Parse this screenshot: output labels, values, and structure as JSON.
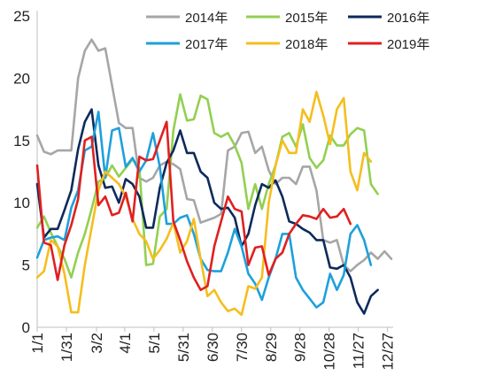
{
  "chart_data": {
    "type": "line",
    "title": "",
    "xlabel": "",
    "ylabel": "",
    "ylim": [
      0,
      25
    ],
    "yticks": [
      0,
      5,
      10,
      15,
      20,
      25
    ],
    "x_ticks": [
      "1/1",
      "1/31",
      "3/2",
      "4/1",
      "5/1",
      "5/31",
      "6/30",
      "7/30",
      "8/29",
      "9/28",
      "10/28",
      "11/27",
      "12/27"
    ],
    "x_tick_weeks": [
      0,
      4.29,
      8.71,
      12.86,
      17.14,
      21.43,
      25.71,
      30,
      34.29,
      38.57,
      42.86,
      47.14,
      51.43
    ],
    "x_unit": "week",
    "grid": false,
    "legend_position": "top-right",
    "series": [
      {
        "name": "2014年",
        "color": "#a6a6a6",
        "values": [
          15.4,
          14.1,
          13.9,
          14.2,
          14.2,
          14.2,
          20.0,
          22.2,
          23.1,
          22.2,
          22.4,
          19.4,
          16.4,
          16.0,
          16.0,
          12.0,
          11.7,
          12.0,
          13.0,
          13.3,
          13.1,
          12.7,
          10.3,
          10.2,
          8.4,
          8.6,
          8.8,
          9.1,
          14.2,
          14.5,
          15.6,
          15.7,
          14.0,
          14.5,
          12.6,
          11.5,
          12.0,
          12.0,
          11.5,
          12.9,
          12.9,
          11.0,
          7.0,
          6.8,
          7.0,
          5.0,
          4.5,
          5.0,
          5.4,
          6.0,
          5.5,
          6.1,
          5.5
        ]
      },
      {
        "name": "2015年",
        "color": "#92d050",
        "values": [
          8.0,
          8.9,
          7.6,
          6.5,
          5.5,
          4.0,
          6.0,
          7.5,
          9.5,
          11.7,
          12.0,
          13.0,
          12.1,
          12.8,
          13.5,
          12.8,
          5.0,
          5.1,
          8.9,
          9.5,
          15.8,
          18.7,
          16.6,
          16.7,
          18.6,
          18.3,
          15.6,
          15.3,
          15.6,
          14.6,
          13.2,
          9.5,
          11.5,
          9.5,
          11.5,
          13.0,
          15.3,
          15.6,
          14.5,
          16.3,
          13.6,
          12.8,
          13.4,
          15.4,
          14.6,
          14.6,
          15.5,
          16.0,
          15.8,
          11.5,
          10.7
        ]
      },
      {
        "name": "2016年",
        "color": "#0d2a5c",
        "values": [
          11.5,
          7.2,
          7.9,
          7.9,
          9.4,
          11.0,
          14.3,
          16.5,
          17.5,
          13.0,
          11.2,
          11.3,
          10.0,
          11.9,
          11.5,
          10.5,
          8.0,
          8.0,
          11.2,
          13.2,
          14.2,
          15.8,
          14.0,
          14.0,
          12.5,
          12.0,
          10.0,
          9.5,
          9.6,
          8.8,
          6.5,
          7.5,
          9.8,
          11.5,
          11.2,
          11.8,
          10.5,
          8.5,
          8.3,
          7.9,
          7.6,
          7.0,
          7.0,
          4.8,
          4.7,
          5.0,
          4.0,
          2.0,
          1.1,
          2.5,
          3.0
        ]
      },
      {
        "name": "2017年",
        "color": "#1ea0dc",
        "values": [
          5.6,
          7.0,
          7.2,
          7.3,
          7.0,
          9.6,
          11.0,
          14.2,
          14.5,
          17.3,
          12.0,
          15.8,
          16.0,
          12.9,
          13.6,
          12.5,
          13.4,
          15.6,
          12.9,
          8.3,
          8.3,
          8.8,
          9.0,
          7.5,
          5.5,
          4.6,
          4.5,
          4.5,
          6.0,
          7.9,
          6.5,
          4.3,
          3.5,
          2.2,
          4.0,
          5.5,
          7.5,
          7.5,
          4.0,
          3.0,
          2.3,
          1.6,
          2.0,
          4.3,
          3.0,
          4.2,
          7.5,
          8.2,
          7.0,
          5.0
        ]
      },
      {
        "name": "2018年",
        "color": "#f5be1e",
        "values": [
          4.0,
          4.5,
          7.0,
          6.5,
          4.3,
          1.2,
          1.2,
          5.0,
          8.0,
          11.0,
          12.5,
          12.0,
          11.5,
          10.5,
          8.7,
          7.5,
          6.9,
          5.5,
          6.2,
          7.1,
          8.4,
          6.0,
          6.9,
          8.7,
          5.5,
          2.5,
          3.0,
          2.0,
          1.3,
          1.5,
          1.0,
          3.3,
          3.1,
          4.0,
          10.0,
          13.0,
          15.0,
          14.0,
          14.0,
          17.5,
          16.5,
          18.9,
          17.0,
          14.7,
          17.5,
          18.4,
          12.5,
          11.0,
          14.0,
          13.3
        ]
      },
      {
        "name": "2019年",
        "color": "#e02020",
        "values": [
          13.0,
          6.8,
          6.6,
          3.8,
          6.6,
          8.2,
          10.3,
          15.0,
          15.3,
          9.8,
          10.5,
          9.0,
          9.2,
          10.8,
          8.5,
          13.7,
          13.4,
          13.5,
          15.0,
          16.5,
          8.5,
          7.0,
          5.3,
          4.0,
          3.0,
          3.3,
          6.5,
          8.5,
          10.5,
          9.5,
          9.3,
          5.0,
          6.4,
          6.5,
          4.2,
          5.5,
          6.0,
          7.5,
          8.3,
          9.0,
          8.9,
          8.7,
          9.5,
          8.8,
          8.9,
          9.5,
          8.3
        ]
      }
    ]
  }
}
